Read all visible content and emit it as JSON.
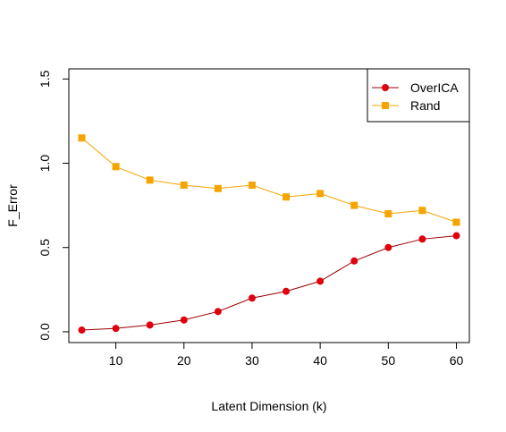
{
  "chart_data": {
    "type": "line",
    "title": "",
    "xlabel": "Latent Dimension (k)",
    "ylabel": "F_Error",
    "xlim": [
      3.1,
      61.9
    ],
    "ylim": [
      -0.064,
      1.56
    ],
    "x_ticks": [
      10,
      20,
      30,
      40,
      50,
      60
    ],
    "x_tick_labels": [
      "10",
      "20",
      "30",
      "40",
      "50",
      "60"
    ],
    "y_ticks": [
      0.0,
      0.5,
      1.0,
      1.5
    ],
    "y_tick_labels": [
      "0.0",
      "0.5",
      "1.0",
      "1.5"
    ],
    "grid": false,
    "legend_position": "top-right",
    "x": [
      5,
      10,
      15,
      20,
      25,
      30,
      35,
      40,
      45,
      50,
      55,
      60
    ],
    "series": [
      {
        "name": "OverICA",
        "color": "#E0000E",
        "line_color": "#9A0000",
        "marker": "circle",
        "values": [
          0.01,
          0.02,
          0.04,
          0.07,
          0.12,
          0.2,
          0.24,
          0.3,
          0.42,
          0.5,
          0.55,
          0.57
        ]
      },
      {
        "name": "Rand",
        "color": "#F5A500",
        "line_color": "#F5A500",
        "marker": "square",
        "values": [
          1.15,
          0.98,
          0.9,
          0.87,
          0.85,
          0.87,
          0.8,
          0.82,
          0.75,
          0.7,
          0.72,
          0.65
        ]
      }
    ]
  }
}
